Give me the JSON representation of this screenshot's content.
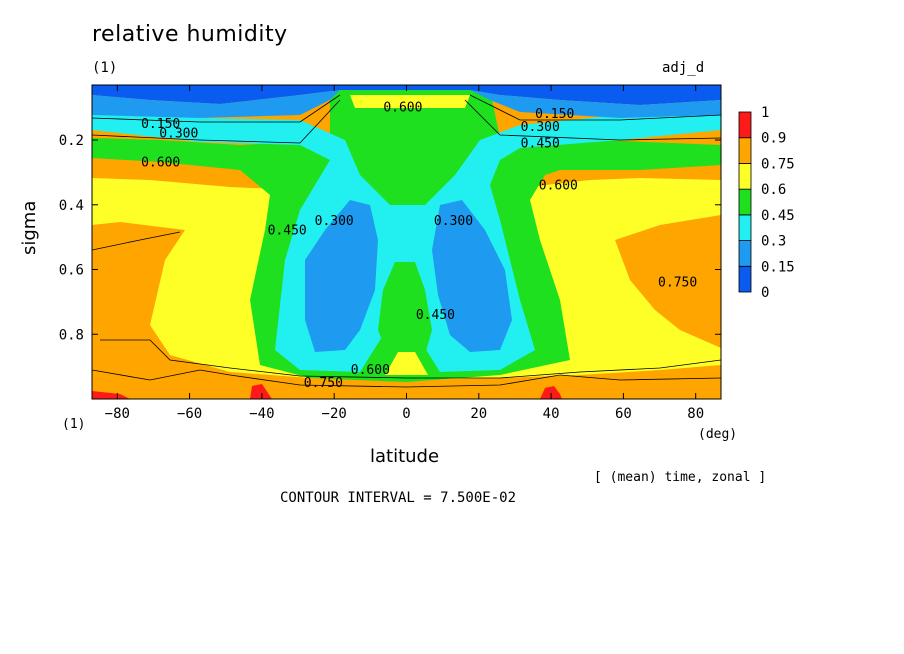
{
  "header": {
    "title": "relative humidity",
    "panel_tag": "(1)",
    "run_label": "adj_d",
    "bottom_tag": "(1)",
    "x_unit": "(deg)",
    "averaging_note": "[ (mean) time, zonal ]",
    "contour_interval": "CONTOUR INTERVAL = 7.500E-02"
  },
  "chart_data": {
    "type": "heatmap",
    "title": "relative humidity",
    "xlabel": "latitude",
    "ylabel": "sigma",
    "xlim": [
      -87,
      87
    ],
    "ylim": [
      1.0,
      0.03
    ],
    "x_ticks": [
      -80,
      -60,
      -40,
      -20,
      0,
      20,
      40,
      60,
      80
    ],
    "y_ticks": [
      0.2,
      0.4,
      0.6,
      0.8
    ],
    "contour_interval": 0.075,
    "colorbar": {
      "levels": [
        0,
        0.15,
        0.3,
        0.45,
        0.6,
        0.75,
        0.9,
        1
      ],
      "colors": [
        "#0a5cf0",
        "#1e9bf0",
        "#22f0f0",
        "#1ee01e",
        "#ffff28",
        "#ffa500",
        "#ff1a1a"
      ]
    },
    "contour_labels": [
      {
        "text": "0.150",
        "x": -68,
        "y": 0.15
      },
      {
        "text": "0.300",
        "x": -63,
        "y": 0.18
      },
      {
        "text": "0.600",
        "x": -68,
        "y": 0.27
      },
      {
        "text": "0.150",
        "x": 41,
        "y": 0.12
      },
      {
        "text": "0.300",
        "x": 37,
        "y": 0.16
      },
      {
        "text": "0.450",
        "x": 37,
        "y": 0.21
      },
      {
        "text": "0.600",
        "x": 42,
        "y": 0.34
      },
      {
        "text": "0.450",
        "x": -33,
        "y": 0.48
      },
      {
        "text": "0.300",
        "x": -20,
        "y": 0.45
      },
      {
        "text": "0.300",
        "x": 13,
        "y": 0.45
      },
      {
        "text": "0.450",
        "x": 8,
        "y": 0.74
      },
      {
        "text": "0.600",
        "x": -10,
        "y": 0.91
      },
      {
        "text": "0.750",
        "x": -23,
        "y": 0.95
      },
      {
        "text": "0.600",
        "x": -1,
        "y": 0.1
      },
      {
        "text": "0.750",
        "x": 75,
        "y": 0.64
      }
    ]
  }
}
